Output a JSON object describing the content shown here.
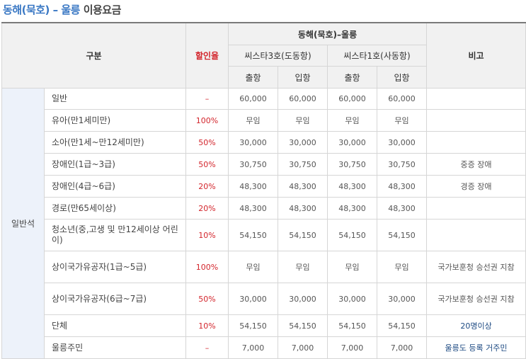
{
  "title": {
    "route": "동해(묵호) – 울릉",
    "suffix": "이용요금"
  },
  "header": {
    "category": "구분",
    "discount": "할인율",
    "route": "동해(묵호)–울릉",
    "ships": [
      "씨스타3호(도동항)",
      "씨스타1호(사동항)"
    ],
    "departure": "출항",
    "arrival": "입항",
    "note": "비고"
  },
  "seat_class": "일반석",
  "rows": [
    {
      "label": "일반",
      "rate": "–",
      "fares": [
        "60,000",
        "60,000",
        "60,000",
        "60,000"
      ],
      "note": ""
    },
    {
      "label": "유아(만1세미만)",
      "rate": "100%",
      "fares": [
        "무임",
        "무임",
        "무임",
        "무임"
      ],
      "note": ""
    },
    {
      "label": "소아(만1세~만12세미만)",
      "rate": "50%",
      "fares": [
        "30,000",
        "30,000",
        "30,000",
        "30,000"
      ],
      "note": ""
    },
    {
      "label": "장애인(1급~3급)",
      "rate": "50%",
      "fares": [
        "30,750",
        "30,750",
        "30,750",
        "30,750"
      ],
      "note": "중증 장애"
    },
    {
      "label": "장애인(4급~6급)",
      "rate": "20%",
      "fares": [
        "48,300",
        "48,300",
        "48,300",
        "48,300"
      ],
      "note": "경증 장애"
    },
    {
      "label": "경로(만65세이상)",
      "rate": "20%",
      "fares": [
        "48,300",
        "48,300",
        "48,300",
        "48,300"
      ],
      "note": ""
    },
    {
      "label": "청소년(중,고생 및 만12세이상 어린이)",
      "rate": "10%",
      "fares": [
        "54,150",
        "54,150",
        "54,150",
        "54,150"
      ],
      "note": ""
    },
    {
      "label": "상이국가유공자(1급~5급)",
      "rate": "100%",
      "fares": [
        "무임",
        "무임",
        "무임",
        "무임"
      ],
      "note": "국가보훈청 승선권 지참"
    },
    {
      "label": "상이국가유공자(6급~7급)",
      "rate": "50%",
      "fares": [
        "30,000",
        "30,000",
        "30,000",
        "30,000"
      ],
      "note": "국가보훈청 승선권 지참"
    },
    {
      "label": "단체",
      "rate": "10%",
      "fares": [
        "54,150",
        "54,150",
        "54,150",
        "54,150"
      ],
      "note": "20명이상"
    },
    {
      "label": "울릉주민",
      "rate": "–",
      "fares": [
        "7,000",
        "7,000",
        "7,000",
        "7,000"
      ],
      "note": "울릉도 등록 거주민"
    }
  ]
}
